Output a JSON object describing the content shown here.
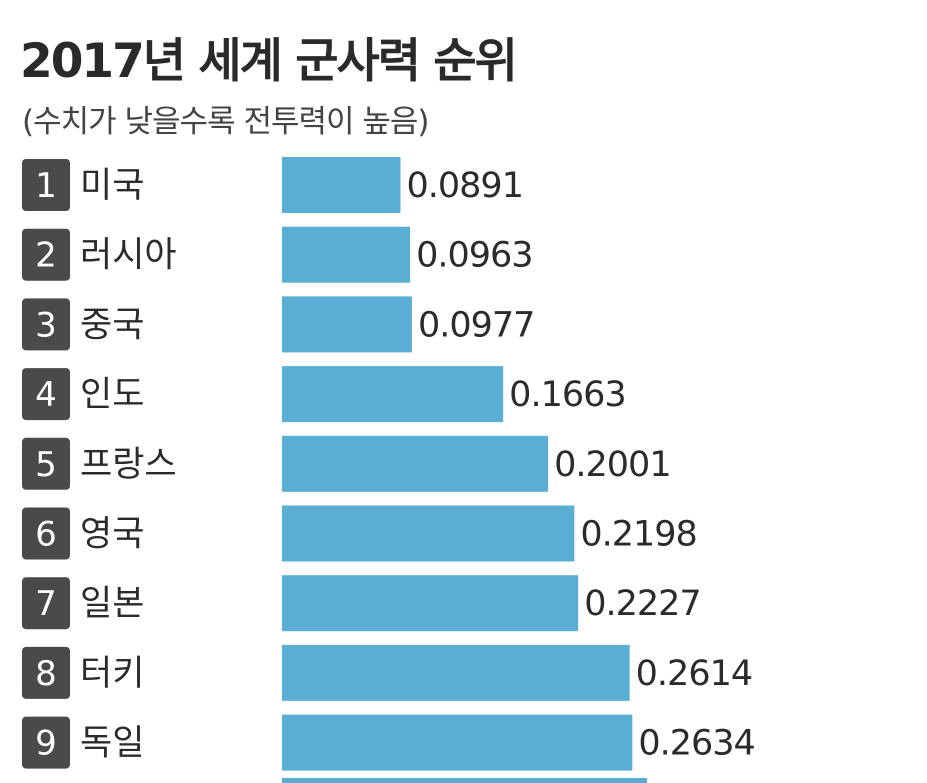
{
  "chart_data": {
    "type": "bar",
    "orientation": "horizontal",
    "title": "2017년 세계 군사력 순위",
    "subtitle": "(수치가 낮을수록 전투력이 높음)",
    "ranks": [
      "1",
      "2",
      "3",
      "4",
      "5",
      "6",
      "7",
      "8",
      "9"
    ],
    "categories": [
      "미국",
      "러시아",
      "중국",
      "인도",
      "프랑스",
      "영국",
      "일본",
      "터키",
      "독일"
    ],
    "values": [
      0.0891,
      0.0963,
      0.0977,
      0.1663,
      0.2001,
      0.2198,
      0.2227,
      0.2614,
      0.2634
    ],
    "value_labels": [
      "0.0891",
      "0.0963",
      "0.0977",
      "0.1663",
      "0.2001",
      "0.2198",
      "0.2227",
      "0.2614",
      "0.2634"
    ],
    "grid": false,
    "legend": "none"
  },
  "colors": {
    "bar": "#5aaed3",
    "rank_badge": "#4a4a4a",
    "text": "#2b2b2b"
  }
}
